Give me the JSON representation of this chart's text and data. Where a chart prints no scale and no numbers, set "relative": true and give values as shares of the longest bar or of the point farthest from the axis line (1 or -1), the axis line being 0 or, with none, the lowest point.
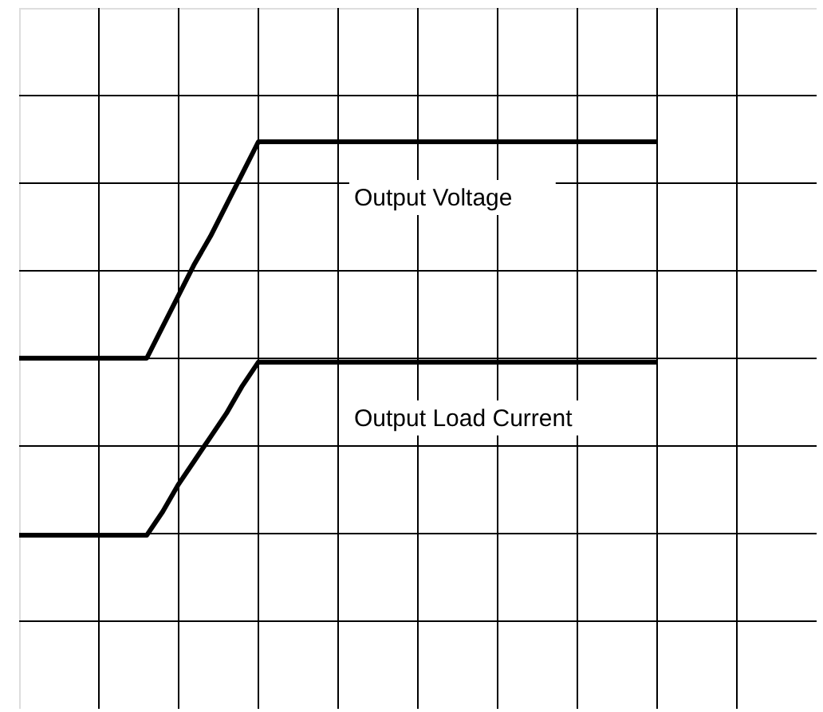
{
  "chart_data": {
    "type": "line",
    "relative": true,
    "grid": true,
    "legend": false,
    "categories": [
      null,
      null,
      null,
      null,
      null,
      null,
      null,
      null,
      null,
      null,
      null,
      null,
      null,
      null,
      null,
      null,
      null,
      null,
      null,
      null,
      null,
      null,
      null,
      null,
      null,
      null,
      null,
      null,
      null,
      null,
      null,
      null,
      null,
      null,
      null,
      null,
      null,
      null,
      null,
      null,
      null,
      null,
      null,
      null,
      null,
      null,
      null,
      null,
      null,
      null,
      null
    ],
    "series": [
      {
        "name": "Output Voltage",
        "color": "#000000",
        "values": [
          0.45,
          0.45,
          0.45,
          0.45,
          0.45,
          0.45,
          0.45,
          0.45,
          0.45,
          0.53,
          0.61,
          0.69,
          0.76,
          0.84,
          0.92,
          1,
          1,
          1,
          1,
          1,
          1,
          1,
          1,
          1,
          1,
          1,
          1,
          1,
          1,
          1,
          1,
          1,
          1,
          1,
          1,
          1,
          1,
          1,
          1,
          1,
          1,
          null,
          null,
          null,
          null,
          null,
          null,
          null,
          null,
          null,
          null
        ]
      },
      {
        "name": "Output Load Current",
        "color": "#000000",
        "values": [
          0,
          0,
          0,
          0,
          0,
          0,
          0,
          0,
          0,
          0.06,
          0.13,
          0.19,
          0.25,
          0.31,
          0.38,
          0.44,
          0.44,
          0.44,
          0.44,
          0.44,
          0.44,
          0.44,
          0.44,
          0.44,
          0.44,
          0.44,
          0.44,
          0.44,
          0.44,
          0.44,
          0.44,
          0.44,
          0.44,
          0.44,
          0.44,
          0.44,
          0.44,
          0.44,
          0.44,
          0.44,
          0.44,
          null,
          null,
          null,
          null,
          null,
          null,
          null,
          null,
          null,
          null
        ]
      }
    ]
  }
}
